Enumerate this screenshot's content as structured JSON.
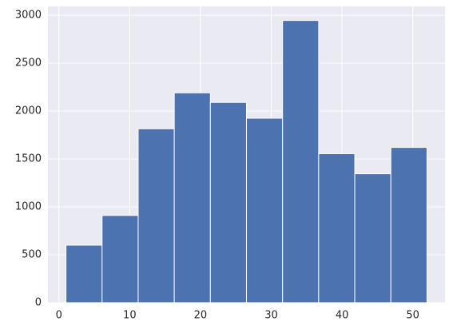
{
  "chart_data": {
    "type": "histogram",
    "bins": [
      1,
      6.1,
      11.2,
      16.3,
      21.4,
      26.5,
      31.6,
      36.7,
      41.8,
      46.9,
      52
    ],
    "values": [
      600,
      910,
      1815,
      2190,
      2090,
      1925,
      2945,
      1555,
      1345,
      1620
    ],
    "color": "#4c72b0",
    "xlim": [
      -1.55,
      54.55
    ],
    "xticks": [
      0,
      10,
      20,
      30,
      40,
      50
    ],
    "ylim": [
      0,
      3092
    ],
    "yticks": [
      0,
      500,
      1000,
      1500,
      2000,
      2500,
      3000
    ],
    "grid": true
  }
}
